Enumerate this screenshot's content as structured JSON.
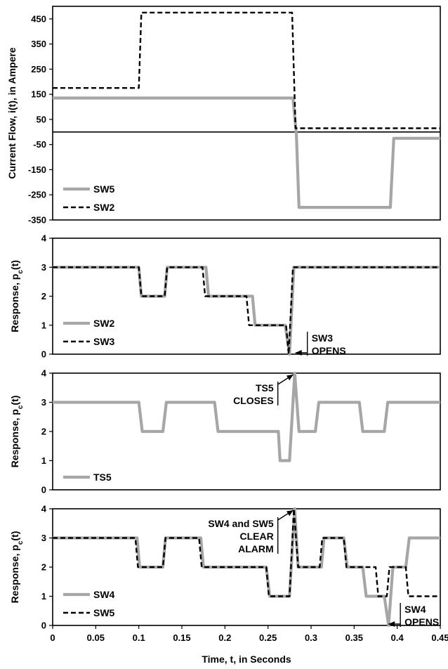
{
  "xlabel": "Time, t, in Seconds",
  "x_ticks": [
    0,
    0.05,
    0.1,
    0.15,
    0.2,
    0.25,
    0.3,
    0.35,
    0.4,
    0.45
  ],
  "x_tick_labels": [
    "0",
    "0.05",
    "0.1",
    "0.15",
    "0.2",
    "0.25",
    "0.3",
    "0.35",
    "0.4",
    "0.45"
  ],
  "colors": {
    "gray_series": "#a6a6a6",
    "black_series": "#000000"
  },
  "chart_data": [
    {
      "type": "line",
      "title": "",
      "xlabel": "",
      "ylabel": "Current Flow, i(t), in Ampere",
      "xlim": [
        0,
        0.45
      ],
      "ylim": [
        -350,
        500
      ],
      "y_ticks": [
        450,
        350,
        250,
        150,
        50,
        -50,
        -150,
        -250,
        -350
      ],
      "zero_line": true,
      "grid": false,
      "legend_position": "bottom-left",
      "series": [
        {
          "name": "SW5",
          "color": "#a6a6a6",
          "dash": "solid",
          "points": [
            [
              0,
              135
            ],
            [
              0.279,
              135
            ],
            [
              0.283,
              -10
            ],
            [
              0.286,
              -300
            ],
            [
              0.392,
              -300
            ],
            [
              0.396,
              -25
            ],
            [
              0.45,
              -25
            ]
          ]
        },
        {
          "name": "SW2",
          "color": "#000000",
          "dash": "dashed",
          "points": [
            [
              0,
              175
            ],
            [
              0.1,
              175
            ],
            [
              0.103,
              475
            ],
            [
              0.278,
              475
            ],
            [
              0.282,
              15
            ],
            [
              0.45,
              15
            ]
          ]
        }
      ],
      "annotations": []
    },
    {
      "type": "line",
      "title": "",
      "xlabel": "",
      "ylabel": "Response, pc(t)",
      "xlim": [
        0,
        0.45
      ],
      "ylim": [
        0,
        4
      ],
      "y_ticks": [
        0,
        1,
        2,
        3,
        4
      ],
      "grid": false,
      "legend_position": "bottom-left",
      "series": [
        {
          "name": "SW2",
          "color": "#a6a6a6",
          "dash": "solid",
          "points": [
            [
              0,
              3
            ],
            [
              0.1,
              3
            ],
            [
              0.103,
              2
            ],
            [
              0.13,
              2
            ],
            [
              0.133,
              3
            ],
            [
              0.178,
              3
            ],
            [
              0.181,
              2
            ],
            [
              0.232,
              2
            ],
            [
              0.235,
              1
            ],
            [
              0.27,
              1
            ],
            [
              0.275,
              0
            ],
            [
              0.28,
              3
            ],
            [
              0.45,
              3
            ]
          ]
        },
        {
          "name": "SW3",
          "color": "#000000",
          "dash": "dashed",
          "points": [
            [
              0,
              3
            ],
            [
              0.1,
              3
            ],
            [
              0.103,
              2
            ],
            [
              0.13,
              2
            ],
            [
              0.133,
              3
            ],
            [
              0.174,
              3
            ],
            [
              0.177,
              2
            ],
            [
              0.225,
              2
            ],
            [
              0.228,
              1
            ],
            [
              0.271,
              1
            ],
            [
              0.274,
              0
            ],
            [
              0.279,
              3
            ],
            [
              0.45,
              3
            ]
          ]
        }
      ],
      "annotations": [
        {
          "lines": [
            "SW3",
            "OPENS"
          ],
          "x": 0.281,
          "y": 0
        }
      ]
    },
    {
      "type": "line",
      "title": "",
      "xlabel": "",
      "ylabel": "Response, pc(t)",
      "xlim": [
        0,
        0.45
      ],
      "ylim": [
        0,
        4
      ],
      "y_ticks": [
        0,
        1,
        2,
        3,
        4
      ],
      "grid": false,
      "legend_position": "bottom-left",
      "series": [
        {
          "name": "TS5",
          "color": "#a6a6a6",
          "dash": "solid",
          "points": [
            [
              0,
              3
            ],
            [
              0.1,
              3
            ],
            [
              0.104,
              2
            ],
            [
              0.128,
              2
            ],
            [
              0.132,
              3
            ],
            [
              0.188,
              3
            ],
            [
              0.192,
              2
            ],
            [
              0.262,
              2
            ],
            [
              0.264,
              1
            ],
            [
              0.275,
              1
            ],
            [
              0.281,
              4
            ],
            [
              0.286,
              2
            ],
            [
              0.305,
              2
            ],
            [
              0.309,
              3
            ],
            [
              0.356,
              3
            ],
            [
              0.36,
              2
            ],
            [
              0.385,
              2
            ],
            [
              0.389,
              3
            ],
            [
              0.45,
              3
            ]
          ]
        }
      ],
      "annotations": [
        {
          "lines": [
            "TS5",
            "CLOSES"
          ],
          "x": 0.281,
          "y": 4
        }
      ]
    },
    {
      "type": "line",
      "title": "",
      "xlabel": "Time, t, in Seconds",
      "ylabel": "Response, pc(t)",
      "xlim": [
        0,
        0.45
      ],
      "ylim": [
        0,
        4
      ],
      "y_ticks": [
        0,
        1,
        2,
        3,
        4
      ],
      "grid": false,
      "legend_position": "bottom-left",
      "series": [
        {
          "name": "SW4",
          "color": "#a6a6a6",
          "dash": "solid",
          "points": [
            [
              0,
              3
            ],
            [
              0.098,
              3
            ],
            [
              0.101,
              2
            ],
            [
              0.128,
              2
            ],
            [
              0.131,
              3
            ],
            [
              0.172,
              3
            ],
            [
              0.175,
              2
            ],
            [
              0.248,
              2
            ],
            [
              0.252,
              1
            ],
            [
              0.275,
              1
            ],
            [
              0.281,
              4
            ],
            [
              0.285,
              2
            ],
            [
              0.312,
              2
            ],
            [
              0.315,
              3
            ],
            [
              0.338,
              3
            ],
            [
              0.342,
              2
            ],
            [
              0.36,
              2
            ],
            [
              0.364,
              1
            ],
            [
              0.385,
              1
            ],
            [
              0.39,
              0
            ],
            [
              0.395,
              2
            ],
            [
              0.41,
              2
            ],
            [
              0.414,
              3
            ],
            [
              0.45,
              3
            ]
          ]
        },
        {
          "name": "SW5",
          "color": "#000000",
          "dash": "dashed",
          "points": [
            [
              0,
              3
            ],
            [
              0.096,
              3
            ],
            [
              0.099,
              2
            ],
            [
              0.128,
              2
            ],
            [
              0.131,
              3
            ],
            [
              0.17,
              3
            ],
            [
              0.173,
              2
            ],
            [
              0.248,
              2
            ],
            [
              0.251,
              1
            ],
            [
              0.275,
              1
            ],
            [
              0.28,
              4
            ],
            [
              0.285,
              2
            ],
            [
              0.31,
              2
            ],
            [
              0.313,
              3
            ],
            [
              0.338,
              3
            ],
            [
              0.341,
              2
            ],
            [
              0.375,
              2
            ],
            [
              0.378,
              1
            ],
            [
              0.388,
              1
            ],
            [
              0.391,
              2
            ],
            [
              0.41,
              2
            ],
            [
              0.413,
              1
            ],
            [
              0.45,
              1
            ]
          ]
        }
      ],
      "annotations": [
        {
          "lines": [
            "SW4 and SW5",
            "CLEAR",
            "ALARM"
          ],
          "x": 0.281,
          "y": 4
        },
        {
          "lines": [
            "SW4",
            "OPENS"
          ],
          "x": 0.389,
          "y": 0
        }
      ]
    }
  ]
}
